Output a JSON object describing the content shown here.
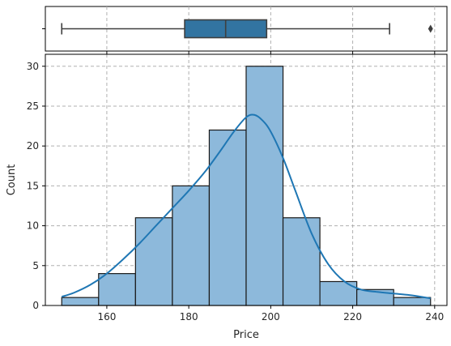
{
  "chart_data": {
    "type": "histogram-with-boxplot",
    "xlabel": "Price",
    "ylabel": "Count",
    "xlim": [
      145,
      243
    ],
    "ylim": [
      0,
      31.5
    ],
    "grid": true,
    "x_ticks": [
      160,
      180,
      200,
      220,
      240
    ],
    "x_tick_labels": [
      "160",
      "180",
      "200",
      "220",
      "240"
    ],
    "y_ticks": [
      0,
      5,
      10,
      15,
      20,
      25,
      30
    ],
    "y_tick_labels": [
      "0",
      "5",
      "10",
      "15",
      "20",
      "25",
      "30"
    ],
    "bin_edges": [
      149,
      158,
      167,
      176,
      185,
      194,
      203,
      212,
      221,
      230,
      239
    ],
    "counts": [
      1,
      4,
      11,
      15,
      22,
      30,
      11,
      3,
      2,
      1
    ],
    "kde": {
      "x": [
        149,
        152,
        156,
        160,
        164,
        168,
        172,
        176,
        180,
        184,
        188,
        191,
        194,
        196,
        198,
        200,
        203,
        206,
        210,
        214,
        218,
        222,
        226,
        230,
        234,
        239
      ],
      "y": [
        1.1,
        1.6,
        2.6,
        4.0,
        5.8,
        7.8,
        10.0,
        12.2,
        14.4,
        16.8,
        19.6,
        21.8,
        23.6,
        23.9,
        23.2,
        21.8,
        18.5,
        14.4,
        9.0,
        5.2,
        3.0,
        2.0,
        1.7,
        1.5,
        1.3,
        0.9
      ]
    },
    "boxplot": {
      "whisker_low": 149,
      "q1": 179,
      "median": 189,
      "q3": 199,
      "whisker_high": 229,
      "outliers": [
        239
      ]
    },
    "colors": {
      "bar_fill": "#8db9db",
      "bar_edge": "#1a1a1a",
      "kde_line": "#1f77b4",
      "box_fill": "#3274a1",
      "box_edge": "#3f3f3f",
      "grid": "#b0b0b0"
    }
  }
}
